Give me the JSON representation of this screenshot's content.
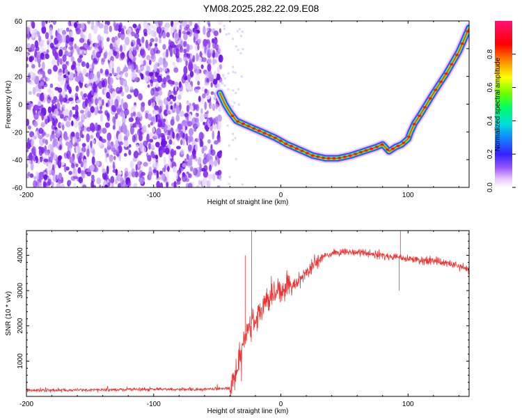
{
  "figure_title": "YM08.2025.282.22.09.E08",
  "colors": {
    "snr_line": "#ee3333",
    "frame": "#000000"
  },
  "chart_data": [
    {
      "type": "heatmap",
      "title": "YM08.2025.282.22.09.E08",
      "xlabel": "Height of straight line (km)",
      "ylabel": "Frequency (Hz)",
      "xlim": [
        -200,
        148
      ],
      "ylim": [
        -60,
        60
      ],
      "xticks": [
        -200,
        -100,
        0,
        100
      ],
      "xtick_labels": [
        "-200",
        "-100",
        "0",
        "100"
      ],
      "yticks": [
        -60,
        -40,
        -20,
        0,
        20,
        40,
        60
      ],
      "ytick_labels": [
        "-60",
        "-40",
        "-20",
        "0",
        "20",
        "40",
        "60"
      ],
      "noise_region_x": [
        -200,
        -47
      ],
      "ridge": {
        "x": [
          -48,
          -44,
          -40,
          -35,
          -25,
          -15,
          -5,
          5,
          15,
          25,
          35,
          45,
          55,
          65,
          75,
          80,
          85,
          90,
          95,
          100,
          102,
          105,
          110,
          120,
          130,
          140,
          148
        ],
        "frequency": [
          8,
          0,
          -6,
          -12,
          -16,
          -20,
          -24,
          -29,
          -33,
          -37,
          -39,
          -39,
          -37,
          -34,
          -31,
          -29,
          -34,
          -31,
          -29,
          -25,
          -20,
          -14,
          -7,
          8,
          22,
          38,
          55
        ]
      },
      "colorbar": {
        "label": "Normalized spectral amplitude",
        "range": [
          0,
          1
        ],
        "ticks": [
          0.0,
          0.2,
          0.4,
          0.6,
          0.8
        ],
        "tick_labels": [
          "0.0",
          "0.2",
          "0.4",
          "0.6",
          "0.8"
        ]
      }
    },
    {
      "type": "line",
      "title": "",
      "xlabel": "Height of straight line (km)",
      "ylabel": "SNR (10 * v/v)",
      "xlim": [
        -200,
        148
      ],
      "ylim": [
        0,
        4700
      ],
      "xticks": [
        -200,
        -100,
        0,
        100
      ],
      "xtick_labels": [
        "-200",
        "-100",
        "0",
        "100"
      ],
      "yticks": [
        1000,
        2000,
        3000,
        4000
      ],
      "ytick_labels": [
        "1000",
        "2000",
        "3000",
        "4000"
      ],
      "series": [
        {
          "name": "SNR",
          "x": [
            -200,
            -150,
            -100,
            -60,
            -40,
            -35,
            -30,
            -25,
            -20,
            -15,
            -10,
            -5,
            0,
            10,
            20,
            30,
            40,
            50,
            60,
            70,
            80,
            90,
            100,
            110,
            120,
            130,
            140,
            148
          ],
          "values": [
            170,
            180,
            200,
            200,
            230,
            700,
            1500,
            2000,
            2200,
            2500,
            2700,
            2900,
            3000,
            3200,
            3500,
            3900,
            4050,
            4100,
            4100,
            4050,
            4000,
            3950,
            3900,
            3850,
            3850,
            3800,
            3700,
            3600
          ]
        }
      ],
      "annotations": [
        {
          "x": -23,
          "value": 4700,
          "note": "spike"
        },
        {
          "x": -28,
          "value": 4000,
          "note": "spike"
        },
        {
          "x": 94,
          "value": 4700,
          "note": "spike"
        },
        {
          "x": 93,
          "value": 3000,
          "note": "dip"
        }
      ]
    }
  ]
}
